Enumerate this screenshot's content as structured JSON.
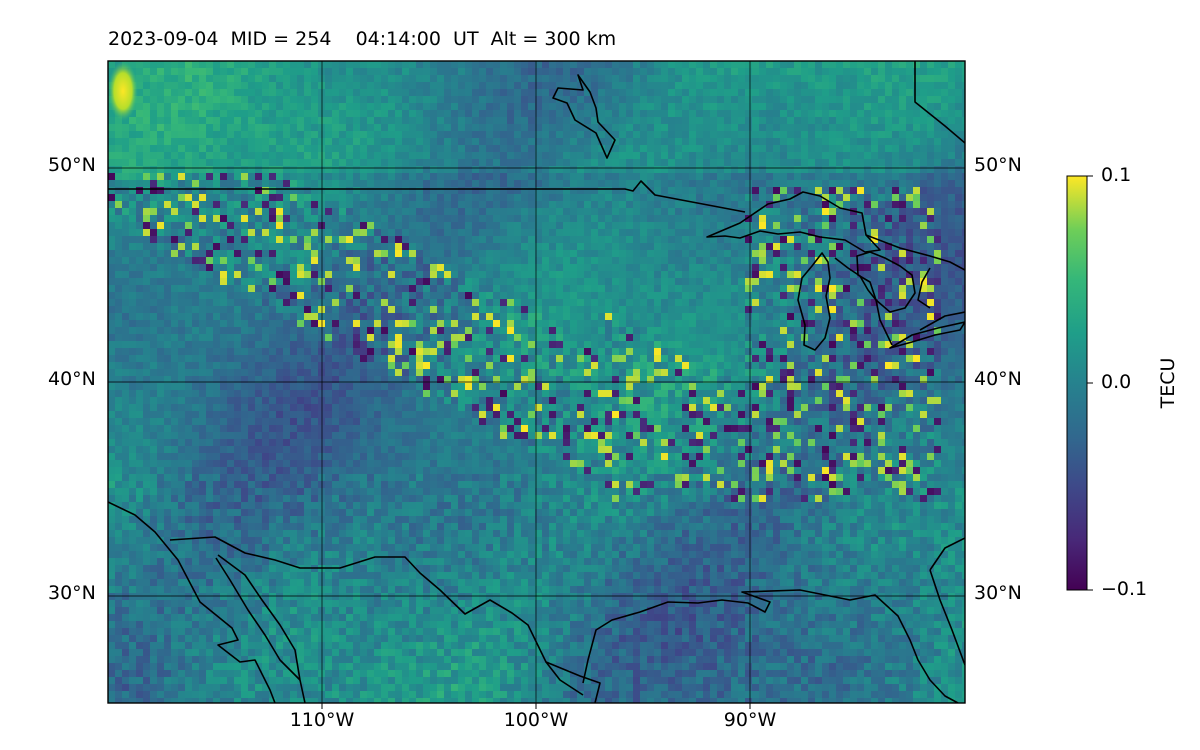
{
  "title": {
    "date": "2023-09-04",
    "mid": "MID = 254",
    "time": "04:14:00",
    "time_zone": "UT",
    "altitude": "Alt = 300 km"
  },
  "map": {
    "lat_labels": [
      "50°N",
      "40°N",
      "30°N"
    ],
    "lon_labels": [
      "110°W",
      "100°W",
      "90°W"
    ],
    "lat_values": [
      50,
      40,
      30
    ],
    "lon_values": [
      -110,
      -100,
      -90
    ],
    "extent": {
      "lon": [
        -120,
        -80
      ],
      "lat": [
        25,
        55
      ]
    },
    "grid": true,
    "coastlines_color": "#000000",
    "colormap": "viridis"
  },
  "colorbar": {
    "label": "TECU",
    "ticks": [
      "0.1",
      "0.0",
      "−0.1"
    ],
    "range": [
      -0.1,
      0.1
    ]
  }
}
